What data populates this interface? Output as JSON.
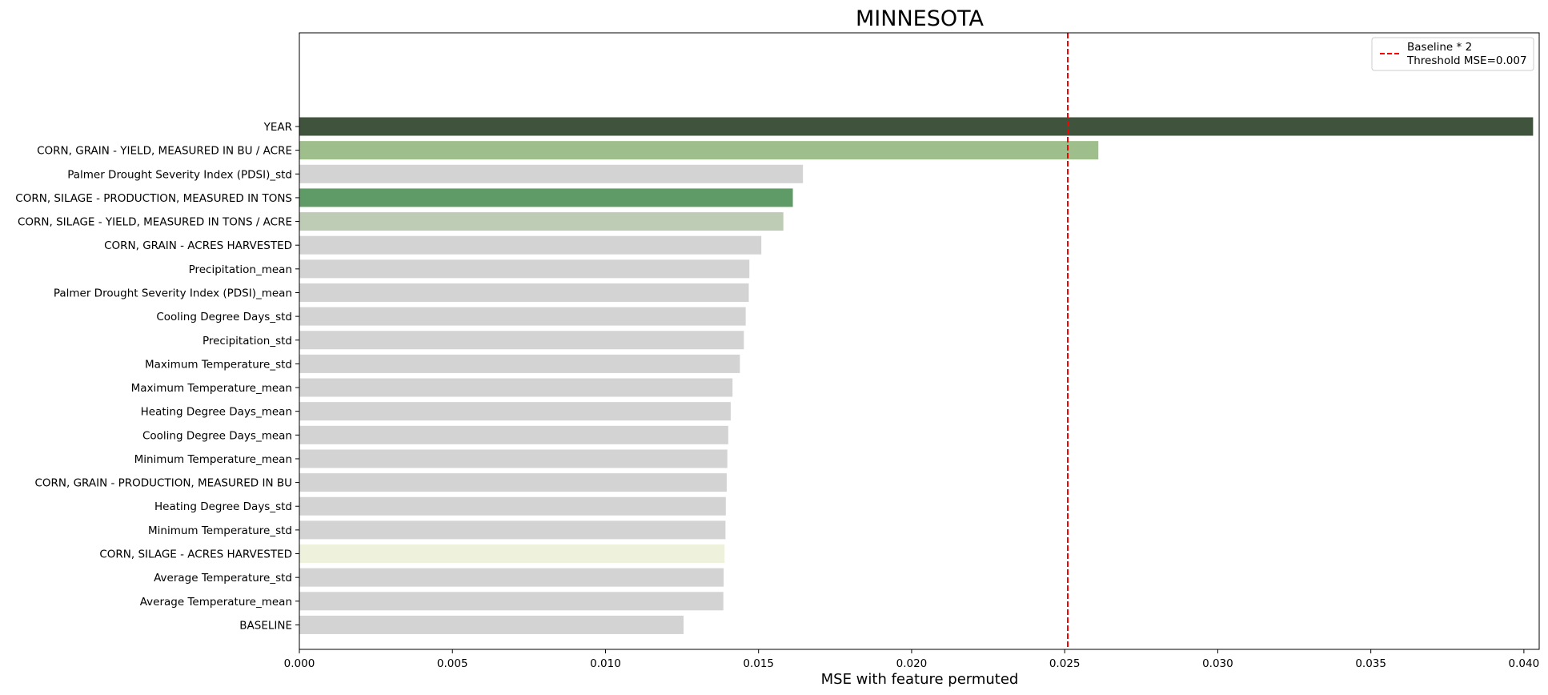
{
  "chart_data": {
    "type": "bar",
    "orientation": "horizontal",
    "title": "MINNESOTA",
    "xlabel": "MSE with feature permuted",
    "ylabel": "",
    "xlim": [
      0,
      0.0405
    ],
    "xticks": [
      "0.000",
      "0.005",
      "0.010",
      "0.015",
      "0.020",
      "0.025",
      "0.030",
      "0.035",
      "0.040"
    ],
    "grid": false,
    "legend_position": "top-right",
    "categories": [
      "YEAR",
      "CORN, GRAIN - YIELD, MEASURED IN BU / ACRE",
      "Palmer Drought Severity Index (PDSI)_std",
      "CORN, SILAGE - PRODUCTION, MEASURED IN TONS",
      "CORN, SILAGE - YIELD, MEASURED IN TONS / ACRE",
      "CORN, GRAIN - ACRES HARVESTED",
      "Precipitation_mean",
      "Palmer Drought Severity Index (PDSI)_mean",
      "Cooling Degree Days_std",
      "Precipitation_std",
      "Maximum Temperature_std",
      "Maximum Temperature_mean",
      "Heating Degree Days_mean",
      "Cooling Degree Days_mean",
      "Minimum Temperature_mean",
      "CORN, GRAIN - PRODUCTION, MEASURED IN BU",
      "Heating Degree Days_std",
      "Minimum Temperature_std",
      "CORN, SILAGE - ACRES HARVESTED",
      "Average Temperature_std",
      "Average Temperature_mean",
      "BASELINE"
    ],
    "values": [
      0.0403,
      0.0261,
      0.01645,
      0.01612,
      0.01581,
      0.01509,
      0.0147,
      0.01468,
      0.01458,
      0.01452,
      0.01439,
      0.01415,
      0.01409,
      0.01401,
      0.01398,
      0.01396,
      0.01393,
      0.01392,
      0.01389,
      0.01386,
      0.01385,
      0.01255
    ],
    "colors": [
      "#40533c",
      "#9ebf8b",
      "#d3d3d3",
      "#5f9b67",
      "#bfccb5",
      "#d3d3d3",
      "#d3d3d3",
      "#d3d3d3",
      "#d3d3d3",
      "#d3d3d3",
      "#d3d3d3",
      "#d3d3d3",
      "#d3d3d3",
      "#d3d3d3",
      "#d3d3d3",
      "#d3d3d3",
      "#d3d3d3",
      "#d3d3d3",
      "#eef2dc",
      "#d3d3d3",
      "#d3d3d3",
      "#d3d3d3"
    ],
    "threshold": {
      "value": 0.0251,
      "color": "#ff0000",
      "style": "dashed",
      "legend": [
        "Baseline * 2",
        "Threshold MSE=0.007"
      ]
    }
  }
}
